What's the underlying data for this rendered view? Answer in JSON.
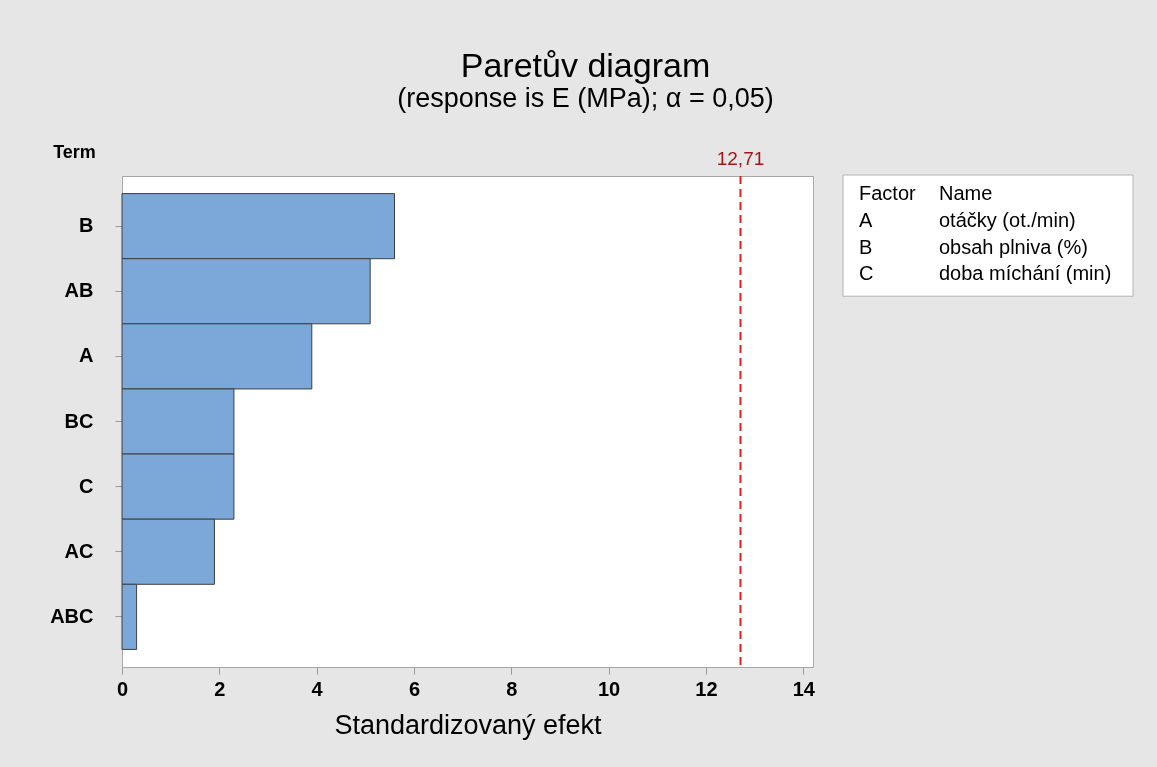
{
  "chart_data": {
    "type": "bar",
    "orientation": "horizontal",
    "title": "Paretův diagram",
    "subtitle": "(response is E (MPa); α = 0,05)",
    "xlabel": "Standardizovaný efekt",
    "ylabel": "Term",
    "categories": [
      "B",
      "AB",
      "A",
      "BC",
      "C",
      "AC",
      "ABC"
    ],
    "values": [
      5.6,
      5.1,
      3.9,
      2.3,
      2.3,
      1.9,
      0.3
    ],
    "color": "#7ba7d9",
    "xlim": [
      0,
      14.2
    ],
    "xticks": [
      0,
      2,
      4,
      6,
      8,
      10,
      12,
      14
    ],
    "grid": false,
    "ref_lines": [
      {
        "axis": "x",
        "value": 12.71,
        "label": "12,71",
        "color": "#e02020",
        "line_style": "dashed"
      }
    ],
    "annotations": [
      "Factor",
      "Name",
      "A",
      "otáčky (ot./min)",
      "B",
      "obsah plniva (%)",
      "C",
      "doba míchání (min)"
    ]
  }
}
